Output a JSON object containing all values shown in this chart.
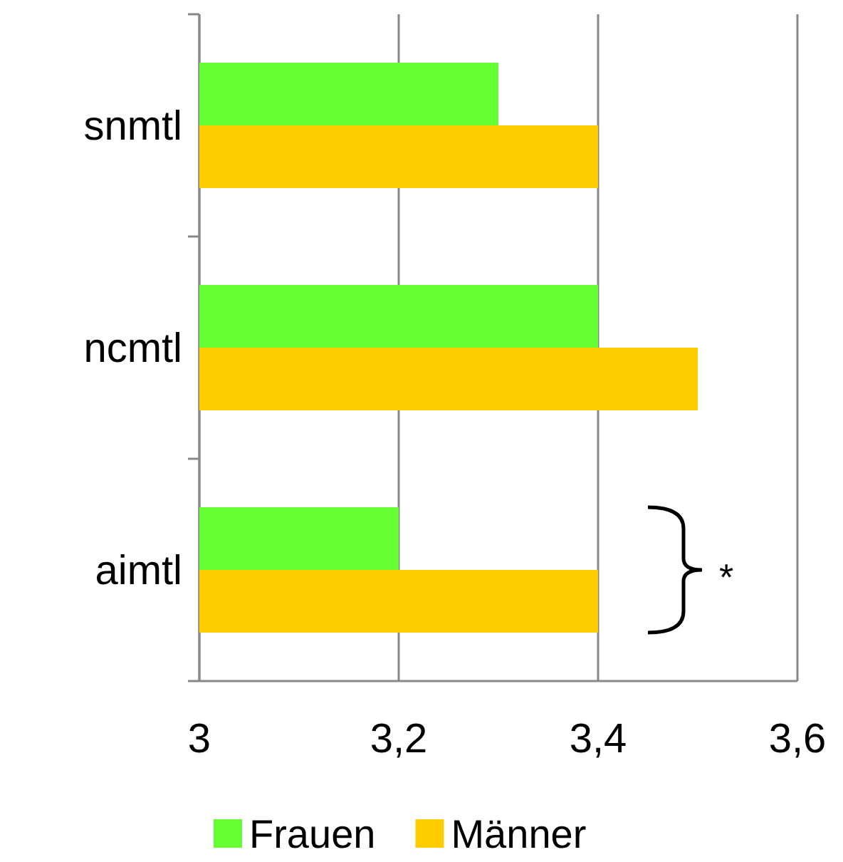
{
  "chart_data": {
    "type": "bar",
    "orientation": "horizontal",
    "categories": [
      "snmtl",
      "ncmtl",
      "aimtl"
    ],
    "series": [
      {
        "name": "Frauen",
        "color": "#66ff33",
        "values": [
          3.3,
          3.4,
          3.2
        ]
      },
      {
        "name": "Männer",
        "color": "#ffcc00",
        "values": [
          3.4,
          3.5,
          3.4
        ]
      }
    ],
    "xlim": [
      3,
      3.6
    ],
    "xticks": [
      {
        "value": 3,
        "label": "3"
      },
      {
        "value": 3.2,
        "label": "3,2"
      },
      {
        "value": 3.4,
        "label": "3,4"
      },
      {
        "value": 3.6,
        "label": "3,6"
      }
    ],
    "grid": "x",
    "legend": "bottom",
    "annotations": [
      "*"
    ]
  }
}
